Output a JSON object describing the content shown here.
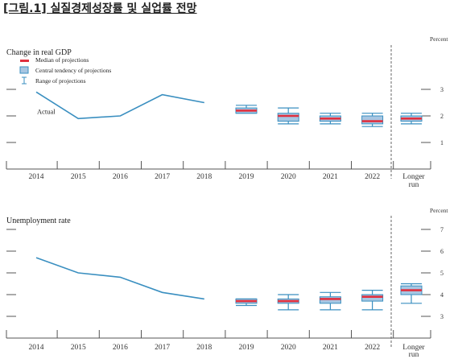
{
  "figure_title": "[그림.1] 실질경제성장률 및 실업률 전망",
  "colors": {
    "line": "#3a8fc0",
    "box_fill": "#a7c6e2",
    "box_stroke": "#3a8fc0",
    "median": "#e0303f",
    "axis": "#555555",
    "text": "#333333"
  },
  "legend": {
    "median": "Median of projections",
    "central": "Central tendency of projections",
    "range": "Range of projections"
  },
  "chart_data": [
    {
      "type": "line+boxplot",
      "title": "Change in real GDP",
      "unit": "Percent",
      "annotation": "Actual",
      "categories": [
        "2014",
        "2015",
        "2016",
        "2017",
        "2018",
        "2019",
        "2020",
        "2021",
        "2022",
        "Longer run"
      ],
      "x_labels": [
        [
          "2014"
        ],
        [
          "2015"
        ],
        [
          "2016"
        ],
        [
          "2017"
        ],
        [
          "2018"
        ],
        [
          "2019"
        ],
        [
          "2020"
        ],
        [
          "2021"
        ],
        [
          "2022"
        ],
        [
          "Longer",
          "run"
        ]
      ],
      "y_ticks": [
        1,
        2,
        3
      ],
      "ylim": [
        0,
        3.5
      ],
      "actual": {
        "categories": [
          "2014",
          "2015",
          "2016",
          "2017",
          "2018"
        ],
        "values": [
          2.9,
          1.9,
          2.0,
          2.8,
          2.5
        ]
      },
      "projections": [
        {
          "category": "2019",
          "range": [
            2.1,
            2.4
          ],
          "central": [
            2.1,
            2.3
          ],
          "median": 2.2
        },
        {
          "category": "2020",
          "range": [
            1.7,
            2.3
          ],
          "central": [
            1.8,
            2.1
          ],
          "median": 2.0
        },
        {
          "category": "2021",
          "range": [
            1.7,
            2.1
          ],
          "central": [
            1.8,
            2.0
          ],
          "median": 1.9
        },
        {
          "category": "2022",
          "range": [
            1.6,
            2.1
          ],
          "central": [
            1.7,
            2.0
          ],
          "median": 1.8
        },
        {
          "category": "Longer run",
          "range": [
            1.7,
            2.1
          ],
          "central": [
            1.8,
            2.0
          ],
          "median": 1.9
        }
      ]
    },
    {
      "type": "line+boxplot",
      "title": "Unemployment rate",
      "unit": "Percent",
      "categories": [
        "2014",
        "2015",
        "2016",
        "2017",
        "2018",
        "2019",
        "2020",
        "2021",
        "2022",
        "Longer run"
      ],
      "x_labels": [
        [
          "2014"
        ],
        [
          "2015"
        ],
        [
          "2016"
        ],
        [
          "2017"
        ],
        [
          "2018"
        ],
        [
          "2019"
        ],
        [
          "2020"
        ],
        [
          "2021"
        ],
        [
          "2022"
        ],
        [
          "Longer",
          "run"
        ]
      ],
      "y_ticks": [
        3,
        4,
        5,
        6,
        7
      ],
      "ylim": [
        2.5,
        7.5
      ],
      "actual": {
        "categories": [
          "2014",
          "2015",
          "2016",
          "2017",
          "2018"
        ],
        "values": [
          5.7,
          5.0,
          4.8,
          4.1,
          3.8
        ]
      },
      "projections": [
        {
          "category": "2019",
          "range": [
            3.5,
            3.8
          ],
          "central": [
            3.6,
            3.8
          ],
          "median": 3.7
        },
        {
          "category": "2020",
          "range": [
            3.3,
            4.0
          ],
          "central": [
            3.6,
            3.8
          ],
          "median": 3.7
        },
        {
          "category": "2021",
          "range": [
            3.3,
            4.1
          ],
          "central": [
            3.6,
            3.9
          ],
          "median": 3.8
        },
        {
          "category": "2022",
          "range": [
            3.3,
            4.2
          ],
          "central": [
            3.7,
            4.0
          ],
          "median": 3.9
        },
        {
          "category": "Longer run",
          "range": [
            3.6,
            4.5
          ],
          "central": [
            4.0,
            4.4
          ],
          "median": 4.2
        }
      ]
    }
  ]
}
